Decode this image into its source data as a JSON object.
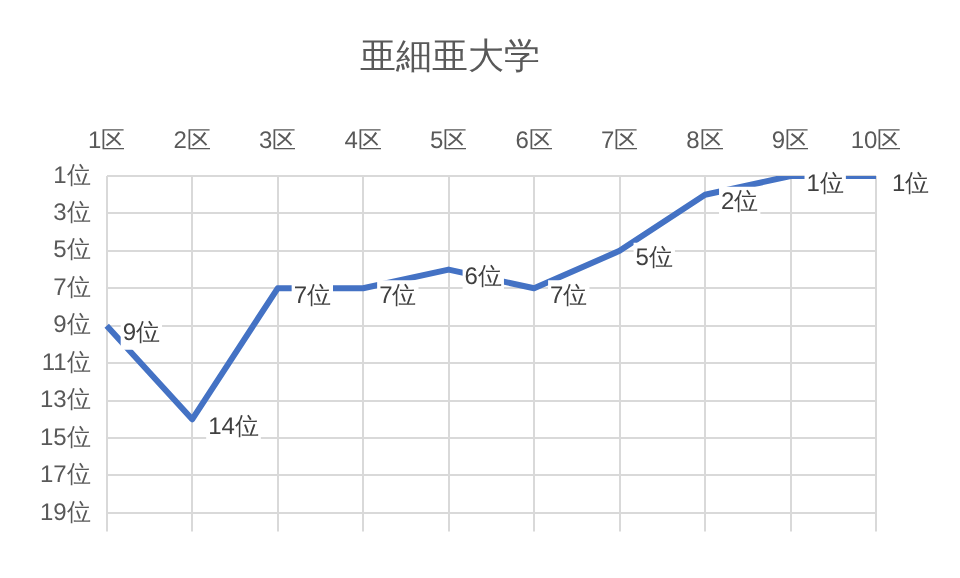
{
  "chart_data": {
    "type": "line",
    "title": "亜細亜大学",
    "categories": [
      "1区",
      "2区",
      "3区",
      "4区",
      "5区",
      "6区",
      "7区",
      "8区",
      "9区",
      "10区"
    ],
    "series": [
      {
        "color": "#4472c4",
        "values": [
          9,
          14,
          7,
          7,
          6,
          7,
          5,
          2,
          1,
          1
        ],
        "value_labels": [
          "9位",
          "14位",
          "7位",
          "7位",
          "6位",
          "7位",
          "5位",
          "2位",
          "1位",
          "1位"
        ]
      }
    ],
    "ylim": [
      20,
      1
    ],
    "yticks": [
      {
        "value": 1,
        "label": "1位"
      },
      {
        "value": 3,
        "label": "3位"
      },
      {
        "value": 5,
        "label": "5位"
      },
      {
        "value": 7,
        "label": "7位"
      },
      {
        "value": 9,
        "label": "9位"
      },
      {
        "value": 11,
        "label": "11位"
      },
      {
        "value": 13,
        "label": "13位"
      },
      {
        "value": 15,
        "label": "15位"
      },
      {
        "value": 17,
        "label": "17位"
      },
      {
        "value": 19,
        "label": "19位"
      }
    ],
    "grid": true,
    "legend": false,
    "marker": "none",
    "line_style": "solid"
  }
}
